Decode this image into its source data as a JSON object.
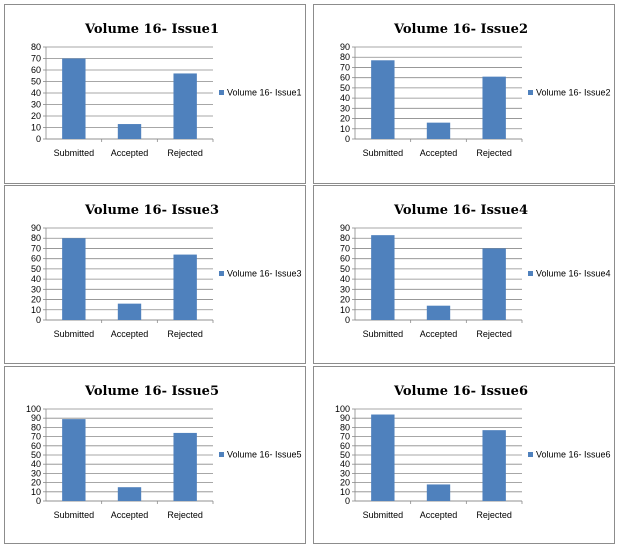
{
  "chart_data": [
    {
      "type": "bar",
      "title": "Volume 16- Issue1",
      "categories": [
        "Submitted",
        "Accepted",
        "Rejected"
      ],
      "series": [
        {
          "name": "Volume 16- Issue1",
          "values": [
            70,
            13,
            57
          ]
        }
      ],
      "ylim": [
        0,
        80
      ],
      "ystep": 10,
      "grid": true,
      "legend": "right",
      "bar_color": "#4f81bd"
    },
    {
      "type": "bar",
      "title": "Volume 16- Issue2",
      "categories": [
        "Submitted",
        "Accepted",
        "Rejected"
      ],
      "series": [
        {
          "name": "Volume 16- Issue2",
          "values": [
            77,
            16,
            61
          ]
        }
      ],
      "ylim": [
        0,
        90
      ],
      "ystep": 10,
      "grid": true,
      "legend": "right",
      "bar_color": "#4f81bd"
    },
    {
      "type": "bar",
      "title": "Volume 16- Issue3",
      "categories": [
        "Submitted",
        "Accepted",
        "Rejected"
      ],
      "series": [
        {
          "name": "Volume 16- Issue3",
          "values": [
            80,
            16,
            64
          ]
        }
      ],
      "ylim": [
        0,
        90
      ],
      "ystep": 10,
      "grid": true,
      "legend": "right",
      "bar_color": "#4f81bd"
    },
    {
      "type": "bar",
      "title": "Volume 16- Issue4",
      "categories": [
        "Submitted",
        "Accepted",
        "Rejected"
      ],
      "series": [
        {
          "name": "Volume 16- Issue4",
          "values": [
            83,
            14,
            70
          ]
        }
      ],
      "ylim": [
        0,
        90
      ],
      "ystep": 10,
      "grid": true,
      "legend": "right",
      "bar_color": "#4f81bd"
    },
    {
      "type": "bar",
      "title": "Volume 16- Issue5",
      "categories": [
        "Submitted",
        "Accepted",
        "Rejected"
      ],
      "series": [
        {
          "name": "Volume 16- Issue5",
          "values": [
            89,
            15,
            74
          ]
        }
      ],
      "ylim": [
        0,
        100
      ],
      "ystep": 10,
      "grid": true,
      "legend": "right",
      "bar_color": "#4f81bd"
    },
    {
      "type": "bar",
      "title": "Volume 16- Issue6",
      "categories": [
        "Submitted",
        "Accepted",
        "Rejected"
      ],
      "series": [
        {
          "name": "Volume 16- Issue6",
          "values": [
            94,
            18,
            77
          ]
        }
      ],
      "ylim": [
        0,
        100
      ],
      "ystep": 10,
      "grid": true,
      "legend": "right",
      "bar_color": "#4f81bd"
    }
  ]
}
